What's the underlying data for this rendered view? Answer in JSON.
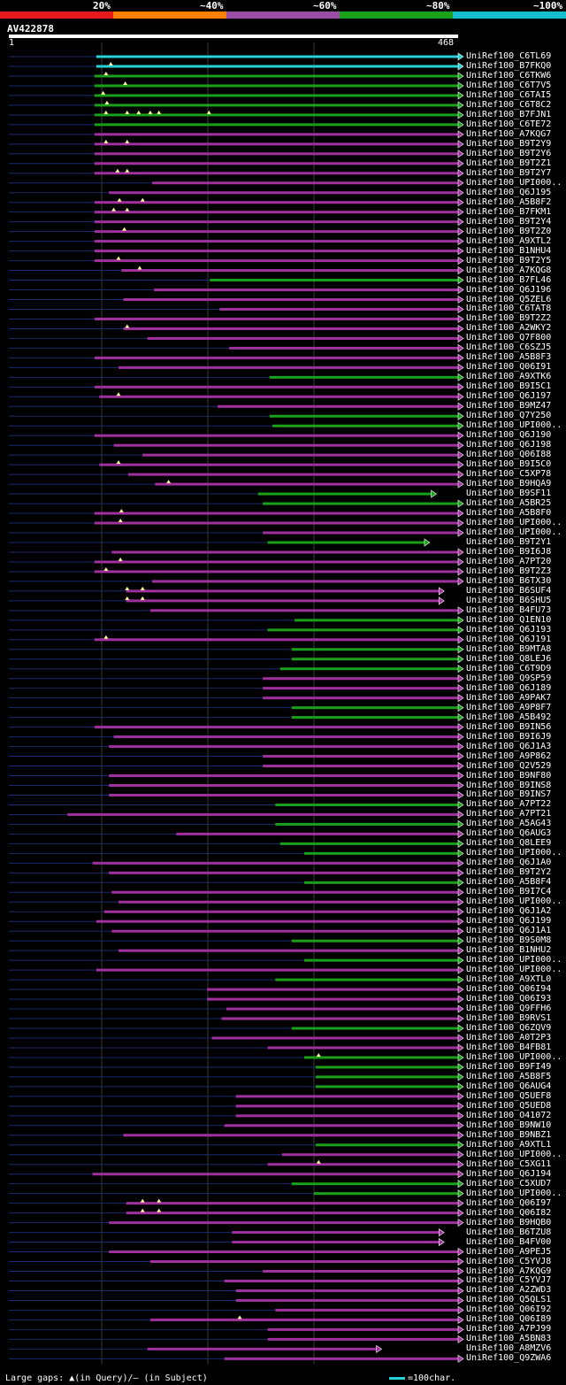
{
  "legend": {
    "bands": [
      {
        "label": "20%",
        "color": "#e41a1c"
      },
      {
        "label": "~40%",
        "color": "#ff7f00"
      },
      {
        "label": "~60%",
        "color": "#984ea3"
      },
      {
        "label": "~80%",
        "color": "#1aa019"
      },
      {
        "label": "~100%",
        "color": "#17becf"
      }
    ]
  },
  "query": {
    "title": "AV422878",
    "start": "1",
    "end": "468",
    "length": 468
  },
  "grid_positions": [
    115,
    235,
    355
  ],
  "hits": [
    {
      "id": "UniRef100_C6TL69",
      "start": 92,
      "end": 468,
      "cls": "~100%",
      "gaps": []
    },
    {
      "id": "UniRef100_B7FKQ0",
      "start": 92,
      "end": 468,
      "cls": "~100%",
      "gaps": [
        107
      ]
    },
    {
      "id": "UniRef100_C6TKW6",
      "start": 90,
      "end": 468,
      "cls": "~80%",
      "gaps": [
        102
      ]
    },
    {
      "id": "UniRef100_C6T7V5",
      "start": 90,
      "end": 468,
      "cls": "~80%",
      "gaps": [
        122
      ]
    },
    {
      "id": "UniRef100_C6TAI5",
      "start": 90,
      "end": 468,
      "cls": "~80%",
      "gaps": [
        99
      ]
    },
    {
      "id": "UniRef100_C6T8C2",
      "start": 90,
      "end": 468,
      "cls": "~80%",
      "gaps": [
        103
      ]
    },
    {
      "id": "UniRef100_B7FJN1",
      "start": 90,
      "end": 468,
      "cls": "~80%",
      "gaps": [
        102,
        124,
        136,
        148,
        157,
        209
      ]
    },
    {
      "id": "UniRef100_C6TE72",
      "start": 90,
      "end": 468,
      "cls": "~80%",
      "gaps": []
    },
    {
      "id": "UniRef100_A7KQG7",
      "start": 90,
      "end": 468,
      "cls": "~60%",
      "gaps": []
    },
    {
      "id": "UniRef100_B9T2Y9",
      "start": 90,
      "end": 468,
      "cls": "~60%",
      "gaps": [
        102,
        124
      ]
    },
    {
      "id": "UniRef100_B9T2Y6",
      "start": 90,
      "end": 468,
      "cls": "~60%",
      "gaps": []
    },
    {
      "id": "UniRef100_B9T2Z1",
      "start": 90,
      "end": 468,
      "cls": "~60%",
      "gaps": []
    },
    {
      "id": "UniRef100_B9T2Y7",
      "start": 90,
      "end": 468,
      "cls": "~60%",
      "gaps": [
        114,
        124
      ]
    },
    {
      "id": "UniRef100_UPI000..",
      "start": 150,
      "end": 468,
      "cls": "~60%",
      "gaps": []
    },
    {
      "id": "UniRef100_Q6J195",
      "start": 105,
      "end": 468,
      "cls": "~60%",
      "gaps": []
    },
    {
      "id": "UniRef100_A5B8F2",
      "start": 90,
      "end": 468,
      "cls": "~60%",
      "gaps": [
        116,
        140
      ]
    },
    {
      "id": "UniRef100_B7FKM1",
      "start": 90,
      "end": 468,
      "cls": "~60%",
      "gaps": [
        110,
        124
      ]
    },
    {
      "id": "UniRef100_B9T2Y4",
      "start": 90,
      "end": 468,
      "cls": "~60%",
      "gaps": []
    },
    {
      "id": "UniRef100_B9T2Z0",
      "start": 90,
      "end": 468,
      "cls": "~60%",
      "gaps": [
        121
      ]
    },
    {
      "id": "UniRef100_A9XTL2",
      "start": 90,
      "end": 468,
      "cls": "~60%",
      "gaps": []
    },
    {
      "id": "UniRef100_B1NHU4",
      "start": 90,
      "end": 468,
      "cls": "~60%",
      "gaps": []
    },
    {
      "id": "UniRef100_B9T2Y5",
      "start": 90,
      "end": 468,
      "cls": "~60%",
      "gaps": [
        115
      ]
    },
    {
      "id": "UniRef100_A7KQG8",
      "start": 118,
      "end": 468,
      "cls": "~60%",
      "gaps": [
        137
      ]
    },
    {
      "id": "UniRef100_B7FL46",
      "start": 210,
      "end": 468,
      "cls": "~80%",
      "gaps": []
    },
    {
      "id": "UniRef100_Q6J196",
      "start": 152,
      "end": 468,
      "cls": "~60%",
      "gaps": []
    },
    {
      "id": "UniRef100_Q5ZEL6",
      "start": 120,
      "end": 468,
      "cls": "~60%",
      "gaps": []
    },
    {
      "id": "UniRef100_C6TAT8",
      "start": 220,
      "end": 468,
      "cls": "~60%",
      "gaps": []
    },
    {
      "id": "UniRef100_B9T2Z2",
      "start": 90,
      "end": 468,
      "cls": "~60%",
      "gaps": []
    },
    {
      "id": "UniRef100_A2WKY2",
      "start": 120,
      "end": 468,
      "cls": "~60%",
      "gaps": [
        124
      ]
    },
    {
      "id": "UniRef100_Q7F800",
      "start": 145,
      "end": 468,
      "cls": "~60%",
      "gaps": []
    },
    {
      "id": "UniRef100_C6SZJ5",
      "start": 230,
      "end": 468,
      "cls": "~60%",
      "gaps": []
    },
    {
      "id": "UniRef100_A5B8F3",
      "start": 90,
      "end": 468,
      "cls": "~60%",
      "gaps": []
    },
    {
      "id": "UniRef100_Q06I91",
      "start": 115,
      "end": 468,
      "cls": "~60%",
      "gaps": []
    },
    {
      "id": "UniRef100_A9XTK6",
      "start": 272,
      "end": 468,
      "cls": "~80%",
      "gaps": []
    },
    {
      "id": "UniRef100_B9I5C1",
      "start": 90,
      "end": 468,
      "cls": "~60%",
      "gaps": []
    },
    {
      "id": "UniRef100_Q6J197",
      "start": 95,
      "end": 468,
      "cls": "~60%",
      "gaps": [
        115
      ]
    },
    {
      "id": "UniRef100_B9MZ47",
      "start": 218,
      "end": 468,
      "cls": "~60%",
      "gaps": []
    },
    {
      "id": "UniRef100_Q7Y250",
      "start": 272,
      "end": 468,
      "cls": "~80%",
      "gaps": []
    },
    {
      "id": "UniRef100_UPI000..",
      "start": 275,
      "end": 468,
      "cls": "~80%",
      "gaps": []
    },
    {
      "id": "UniRef100_Q6J190",
      "start": 90,
      "end": 468,
      "cls": "~60%",
      "gaps": []
    },
    {
      "id": "UniRef100_Q6J198",
      "start": 110,
      "end": 468,
      "cls": "~60%",
      "gaps": []
    },
    {
      "id": "UniRef100_Q06I88",
      "start": 140,
      "end": 468,
      "cls": "~60%",
      "gaps": []
    },
    {
      "id": "UniRef100_B9I5C0",
      "start": 95,
      "end": 468,
      "cls": "~60%",
      "gaps": [
        115
      ]
    },
    {
      "id": "UniRef100_C5XP78",
      "start": 125,
      "end": 468,
      "cls": "~60%",
      "gaps": []
    },
    {
      "id": "UniRef100_B9HQA9",
      "start": 153,
      "end": 468,
      "cls": "~60%",
      "gaps": [
        167
      ]
    },
    {
      "id": "UniRef100_B9SF11",
      "start": 260,
      "end": 440,
      "cls": "~80%",
      "gaps": []
    },
    {
      "id": "UniRef100_A5BR25",
      "start": 265,
      "end": 468,
      "cls": "~80%",
      "gaps": []
    },
    {
      "id": "UniRef100_A5B8F0",
      "start": 90,
      "end": 468,
      "cls": "~60%",
      "gaps": [
        118
      ]
    },
    {
      "id": "UniRef100_UPI000..",
      "start": 90,
      "end": 468,
      "cls": "~60%",
      "gaps": [
        117
      ]
    },
    {
      "id": "UniRef100_UPI000..",
      "start": 265,
      "end": 468,
      "cls": "~60%",
      "gaps": []
    },
    {
      "id": "UniRef100_B9T2Y1",
      "start": 270,
      "end": 433,
      "cls": "~80%",
      "gaps": []
    },
    {
      "id": "UniRef100_B9I6J8",
      "start": 108,
      "end": 468,
      "cls": "~60%",
      "gaps": []
    },
    {
      "id": "UniRef100_A7PT20",
      "start": 90,
      "end": 468,
      "cls": "~60%",
      "gaps": [
        117
      ]
    },
    {
      "id": "UniRef100_B9T2Z3",
      "start": 90,
      "end": 468,
      "cls": "~60%",
      "gaps": [
        102
      ]
    },
    {
      "id": "UniRef100_B6TX30",
      "start": 150,
      "end": 468,
      "cls": "~60%",
      "gaps": []
    },
    {
      "id": "UniRef100_B6SUF4",
      "start": 123,
      "end": 448,
      "cls": "~60%",
      "gaps": [
        124,
        140
      ]
    },
    {
      "id": "UniRef100_B6SHU5",
      "start": 123,
      "end": 448,
      "cls": "~60%",
      "gaps": [
        124,
        140
      ]
    },
    {
      "id": "UniRef100_B4FU73",
      "start": 148,
      "end": 468,
      "cls": "~60%",
      "gaps": []
    },
    {
      "id": "UniRef100_Q1EN10",
      "start": 298,
      "end": 468,
      "cls": "~80%",
      "gaps": []
    },
    {
      "id": "UniRef100_Q6J193",
      "start": 270,
      "end": 468,
      "cls": "~80%",
      "gaps": []
    },
    {
      "id": "UniRef100_Q6J191",
      "start": 90,
      "end": 468,
      "cls": "~60%",
      "gaps": [
        102
      ]
    },
    {
      "id": "UniRef100_B9MTA8",
      "start": 295,
      "end": 468,
      "cls": "~80%",
      "gaps": []
    },
    {
      "id": "UniRef100_Q8LEJ6",
      "start": 295,
      "end": 468,
      "cls": "~80%",
      "gaps": []
    },
    {
      "id": "UniRef100_C6T9D9",
      "start": 283,
      "end": 468,
      "cls": "~80%",
      "gaps": []
    },
    {
      "id": "UniRef100_Q9SP59",
      "start": 265,
      "end": 468,
      "cls": "~60%",
      "gaps": []
    },
    {
      "id": "UniRef100_Q6J189",
      "start": 265,
      "end": 468,
      "cls": "~60%",
      "gaps": []
    },
    {
      "id": "UniRef100_A9PAK7",
      "start": 265,
      "end": 468,
      "cls": "~60%",
      "gaps": []
    },
    {
      "id": "UniRef100_A9P8F7",
      "start": 295,
      "end": 468,
      "cls": "~80%",
      "gaps": []
    },
    {
      "id": "UniRef100_A5B492",
      "start": 295,
      "end": 468,
      "cls": "~80%",
      "gaps": []
    },
    {
      "id": "UniRef100_B9IN56",
      "start": 90,
      "end": 468,
      "cls": "~60%",
      "gaps": []
    },
    {
      "id": "UniRef100_B9I6J9",
      "start": 110,
      "end": 468,
      "cls": "~60%",
      "gaps": []
    },
    {
      "id": "UniRef100_Q6J1A3",
      "start": 105,
      "end": 468,
      "cls": "~60%",
      "gaps": []
    },
    {
      "id": "UniRef100_A9P862",
      "start": 265,
      "end": 468,
      "cls": "~60%",
      "gaps": []
    },
    {
      "id": "UniRef100_Q2V529",
      "start": 265,
      "end": 468,
      "cls": "~60%",
      "gaps": []
    },
    {
      "id": "UniRef100_B9NF80",
      "start": 105,
      "end": 468,
      "cls": "~60%",
      "gaps": []
    },
    {
      "id": "UniRef100_B9INS8",
      "start": 105,
      "end": 468,
      "cls": "~60%",
      "gaps": []
    },
    {
      "id": "UniRef100_B9INS7",
      "start": 105,
      "end": 468,
      "cls": "~60%",
      "gaps": []
    },
    {
      "id": "UniRef100_A7PT22",
      "start": 278,
      "end": 468,
      "cls": "~80%",
      "gaps": []
    },
    {
      "id": "UniRef100_A7PT21",
      "start": 62,
      "end": 468,
      "cls": "~60%",
      "gaps": []
    },
    {
      "id": "UniRef100_A5AG43",
      "start": 278,
      "end": 468,
      "cls": "~80%",
      "gaps": []
    },
    {
      "id": "UniRef100_Q6AUG3",
      "start": 175,
      "end": 468,
      "cls": "~60%",
      "gaps": []
    },
    {
      "id": "UniRef100_Q8LEE9",
      "start": 283,
      "end": 468,
      "cls": "~80%",
      "gaps": []
    },
    {
      "id": "UniRef100_UPI000..",
      "start": 308,
      "end": 468,
      "cls": "~80%",
      "gaps": []
    },
    {
      "id": "UniRef100_Q6J1A0",
      "start": 88,
      "end": 468,
      "cls": "~60%",
      "gaps": []
    },
    {
      "id": "UniRef100_B9T2Y2",
      "start": 105,
      "end": 468,
      "cls": "~60%",
      "gaps": []
    },
    {
      "id": "UniRef100_A5B8F4",
      "start": 308,
      "end": 468,
      "cls": "~80%",
      "gaps": []
    },
    {
      "id": "UniRef100_B9I7C4",
      "start": 108,
      "end": 468,
      "cls": "~60%",
      "gaps": []
    },
    {
      "id": "UniRef100_UPI000..",
      "start": 115,
      "end": 468,
      "cls": "~60%",
      "gaps": []
    },
    {
      "id": "UniRef100_Q6J1A2",
      "start": 100,
      "end": 468,
      "cls": "~60%",
      "gaps": []
    },
    {
      "id": "UniRef100_Q6J199",
      "start": 92,
      "end": 468,
      "cls": "~60%",
      "gaps": []
    },
    {
      "id": "UniRef100_Q6J1A1",
      "start": 108,
      "end": 468,
      "cls": "~60%",
      "gaps": []
    },
    {
      "id": "UniRef100_B9S0M8",
      "start": 295,
      "end": 468,
      "cls": "~80%",
      "gaps": []
    },
    {
      "id": "UniRef100_B1NHU2",
      "start": 115,
      "end": 468,
      "cls": "~60%",
      "gaps": []
    },
    {
      "id": "UniRef100_UPI000..",
      "start": 308,
      "end": 468,
      "cls": "~80%",
      "gaps": []
    },
    {
      "id": "UniRef100_UPI000..",
      "start": 92,
      "end": 468,
      "cls": "~60%",
      "gaps": []
    },
    {
      "id": "UniRef100_A9XTL0",
      "start": 278,
      "end": 468,
      "cls": "~80%",
      "gaps": []
    },
    {
      "id": "UniRef100_Q06I94",
      "start": 207,
      "end": 468,
      "cls": "~60%",
      "gaps": []
    },
    {
      "id": "UniRef100_Q06I93",
      "start": 207,
      "end": 468,
      "cls": "~60%",
      "gaps": []
    },
    {
      "id": "UniRef100_Q9FFH6",
      "start": 227,
      "end": 468,
      "cls": "~60%",
      "gaps": []
    },
    {
      "id": "UniRef100_B9RVS1",
      "start": 222,
      "end": 468,
      "cls": "~60%",
      "gaps": []
    },
    {
      "id": "UniRef100_Q6ZQV9",
      "start": 295,
      "end": 468,
      "cls": "~80%",
      "gaps": []
    },
    {
      "id": "UniRef100_A0T2P3",
      "start": 212,
      "end": 468,
      "cls": "~60%",
      "gaps": []
    },
    {
      "id": "UniRef100_B4FB81",
      "start": 270,
      "end": 468,
      "cls": "~60%",
      "gaps": []
    },
    {
      "id": "UniRef100_UPI000..",
      "start": 308,
      "end": 468,
      "cls": "~80%",
      "gaps": [
        323
      ]
    },
    {
      "id": "UniRef100_B9FI49",
      "start": 320,
      "end": 468,
      "cls": "~80%",
      "gaps": []
    },
    {
      "id": "UniRef100_A5B8F5",
      "start": 320,
      "end": 468,
      "cls": "~80%",
      "gaps": []
    },
    {
      "id": "UniRef100_Q6AUG4",
      "start": 320,
      "end": 468,
      "cls": "~80%",
      "gaps": []
    },
    {
      "id": "UniRef100_Q5UEF8",
      "start": 237,
      "end": 468,
      "cls": "~60%",
      "gaps": []
    },
    {
      "id": "UniRef100_Q5UED8",
      "start": 237,
      "end": 468,
      "cls": "~60%",
      "gaps": []
    },
    {
      "id": "UniRef100_O41072",
      "start": 237,
      "end": 468,
      "cls": "~60%",
      "gaps": []
    },
    {
      "id": "UniRef100_B9NW10",
      "start": 225,
      "end": 468,
      "cls": "~60%",
      "gaps": []
    },
    {
      "id": "UniRef100_B9NBZ1",
      "start": 120,
      "end": 468,
      "cls": "~60%",
      "gaps": []
    },
    {
      "id": "UniRef100_A9XTL1",
      "start": 320,
      "end": 468,
      "cls": "~80%",
      "gaps": []
    },
    {
      "id": "UniRef100_UPI000..",
      "start": 285,
      "end": 468,
      "cls": "~60%",
      "gaps": []
    },
    {
      "id": "UniRef100_C5XG11",
      "start": 270,
      "end": 468,
      "cls": "~60%",
      "gaps": [
        323
      ]
    },
    {
      "id": "UniRef100_Q6J194",
      "start": 88,
      "end": 468,
      "cls": "~60%",
      "gaps": []
    },
    {
      "id": "UniRef100_C5XUD7",
      "start": 295,
      "end": 468,
      "cls": "~80%",
      "gaps": []
    },
    {
      "id": "UniRef100_UPI000..",
      "start": 318,
      "end": 468,
      "cls": "~80%",
      "gaps": []
    },
    {
      "id": "UniRef100_Q06I97",
      "start": 123,
      "end": 468,
      "cls": "~60%",
      "gaps": [
        140,
        157
      ]
    },
    {
      "id": "UniRef100_Q06I82",
      "start": 123,
      "end": 468,
      "cls": "~60%",
      "gaps": [
        140,
        157
      ]
    },
    {
      "id": "UniRef100_B9HQB0",
      "start": 105,
      "end": 468,
      "cls": "~60%",
      "gaps": []
    },
    {
      "id": "UniRef100_B6TZU8",
      "start": 233,
      "end": 448,
      "cls": "~60%",
      "gaps": []
    },
    {
      "id": "UniRef100_B4FV00",
      "start": 233,
      "end": 448,
      "cls": "~60%",
      "gaps": []
    },
    {
      "id": "UniRef100_A9PEJ5",
      "start": 105,
      "end": 468,
      "cls": "~60%",
      "gaps": []
    },
    {
      "id": "UniRef100_C5YVJ8",
      "start": 148,
      "end": 468,
      "cls": "~60%",
      "gaps": []
    },
    {
      "id": "UniRef100_A7KQG9",
      "start": 265,
      "end": 468,
      "cls": "~60%",
      "gaps": []
    },
    {
      "id": "UniRef100_C5YVJ7",
      "start": 225,
      "end": 468,
      "cls": "~60%",
      "gaps": []
    },
    {
      "id": "UniRef100_A2ZWD3",
      "start": 237,
      "end": 468,
      "cls": "~60%",
      "gaps": []
    },
    {
      "id": "UniRef100_Q5QLS1",
      "start": 237,
      "end": 468,
      "cls": "~60%",
      "gaps": []
    },
    {
      "id": "UniRef100_Q06I92",
      "start": 278,
      "end": 468,
      "cls": "~60%",
      "gaps": []
    },
    {
      "id": "UniRef100_Q06I89",
      "start": 148,
      "end": 468,
      "cls": "~60%",
      "gaps": [
        241
      ]
    },
    {
      "id": "UniRef100_A7PJ99",
      "start": 270,
      "end": 468,
      "cls": "~60%",
      "gaps": []
    },
    {
      "id": "UniRef100_A5BN83",
      "start": 270,
      "end": 468,
      "cls": "~60%",
      "gaps": []
    },
    {
      "id": "UniRef100_A8MZV6",
      "start": 145,
      "end": 383,
      "cls": "~60%",
      "gaps": []
    },
    {
      "id": "UniRef100_Q9ZWA6",
      "start": 225,
      "end": 468,
      "cls": "~60%",
      "gaps": []
    }
  ],
  "footer": {
    "large_gaps_label": "Large gaps: ",
    "in_query_label": "▲(in Query)/— (in Subject)",
    "scale_label": "=100char."
  }
}
